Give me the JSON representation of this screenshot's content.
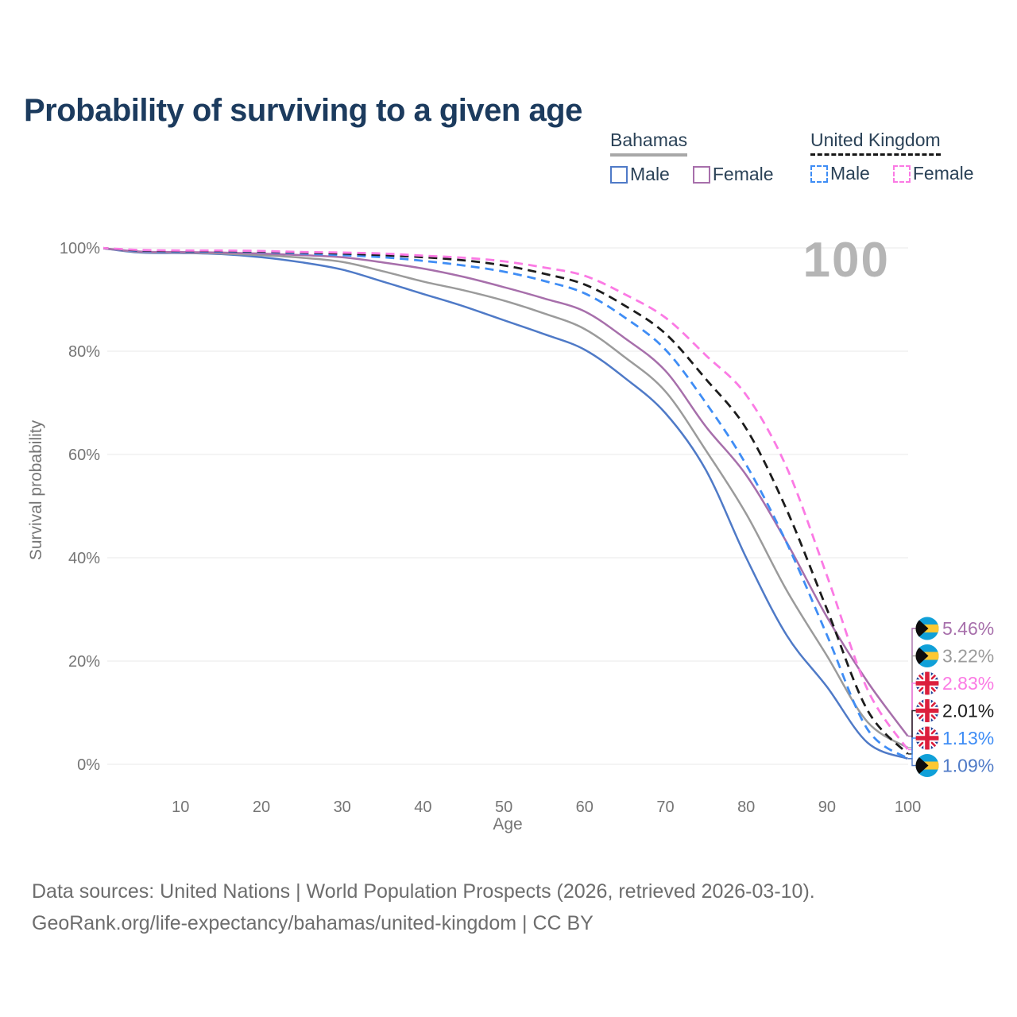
{
  "title": "Probability of surviving to a given age",
  "watermark_age": "100",
  "legend": {
    "groups": [
      {
        "label": "Bahamas",
        "underline_style": "solid",
        "underline_color": "#a8a8a8",
        "items": [
          {
            "label": "Male",
            "series": "bahamas_male"
          },
          {
            "label": "Female",
            "series": "bahamas_female"
          }
        ]
      },
      {
        "label": "United Kingdom",
        "underline_style": "dashed",
        "underline_color": "#161616",
        "items": [
          {
            "label": "Male",
            "series": "uk_male"
          },
          {
            "label": "Female",
            "series": "uk_female"
          }
        ]
      }
    ]
  },
  "axes": {
    "xlabel": "Age",
    "ylabel": "Survival probability",
    "x_ticks": [
      10,
      20,
      30,
      40,
      50,
      60,
      70,
      80,
      90,
      100
    ],
    "y_ticks": [
      {
        "value": 0,
        "label": "0%"
      },
      {
        "value": 20,
        "label": "20%"
      },
      {
        "value": 40,
        "label": "40%"
      },
      {
        "value": 60,
        "label": "60%"
      },
      {
        "value": 80,
        "label": "80%"
      },
      {
        "value": 100,
        "label": "100%"
      }
    ],
    "tick_color": "#757575",
    "grid_color": "#e9e9e9"
  },
  "chart_data": {
    "type": "line",
    "title": "Probability of surviving to a given age",
    "xlabel": "Age",
    "ylabel": "Survival probability",
    "xlim": [
      0,
      100
    ],
    "ylim": [
      0,
      100
    ],
    "grid": "horizontal-only",
    "legend_position": "top-right",
    "frame_label": "100",
    "x": [
      0,
      5,
      10,
      15,
      20,
      25,
      30,
      35,
      40,
      45,
      50,
      55,
      60,
      65,
      70,
      75,
      80,
      85,
      90,
      95,
      100
    ],
    "series": [
      {
        "id": "bahamas_male",
        "name": "Bahamas Male",
        "country": "Bahamas",
        "sex": "Male",
        "color": "#4f7ac7",
        "dash": false,
        "values": [
          100,
          99.1,
          99.0,
          98.8,
          98.2,
          97.2,
          95.8,
          93.5,
          91.1,
          88.7,
          86.0,
          83.3,
          80.3,
          74.8,
          68.0,
          57.0,
          40.0,
          25.0,
          15.0,
          4.2,
          1.09
        ],
        "end_label": "1.09%"
      },
      {
        "id": "bahamas_both",
        "name": "Bahamas Both sexes",
        "country": "Bahamas",
        "sex": "Both",
        "color": "#9b9b9b",
        "dash": false,
        "values": [
          100,
          99.2,
          99.1,
          98.9,
          98.6,
          98.1,
          97.3,
          95.5,
          93.5,
          91.8,
          89.8,
          87.3,
          84.3,
          78.8,
          72.2,
          60.8,
          48.5,
          33.7,
          21.0,
          8.2,
          3.22
        ],
        "end_label": "3.22%"
      },
      {
        "id": "bahamas_female",
        "name": "Bahamas Female",
        "country": "Bahamas",
        "sex": "Female",
        "color": "#a76fab",
        "dash": false,
        "values": [
          100,
          99.3,
          99.2,
          99.1,
          98.9,
          98.6,
          98.2,
          97.2,
          96.0,
          94.4,
          92.4,
          90.2,
          87.7,
          82.5,
          76.2,
          65.4,
          56.0,
          43.0,
          28.5,
          16.0,
          5.46
        ],
        "end_label": "5.46%"
      },
      {
        "id": "uk_male",
        "name": "United Kingdom Male",
        "country": "United Kingdom",
        "sex": "Male",
        "color": "#3f8df5",
        "dash": true,
        "values": [
          100,
          99.4,
          99.3,
          99.3,
          99.2,
          98.9,
          98.6,
          98.2,
          97.5,
          96.6,
          95.4,
          93.6,
          91.2,
          86.5,
          80.3,
          70.0,
          58.0,
          42.9,
          25.0,
          6.8,
          1.13
        ],
        "end_label": "1.13%"
      },
      {
        "id": "uk_both",
        "name": "United Kingdom Both sexes",
        "country": "United Kingdom",
        "sex": "Both",
        "color": "#1c1c1c",
        "dash": true,
        "values": [
          100,
          99.5,
          99.4,
          99.4,
          99.3,
          99.1,
          98.9,
          98.6,
          98.2,
          97.6,
          96.6,
          95.0,
          92.9,
          88.8,
          83.4,
          74.6,
          65.0,
          49.3,
          30.0,
          10.5,
          2.01
        ],
        "end_label": "2.01%"
      },
      {
        "id": "uk_female",
        "name": "United Kingdom Female",
        "country": "United Kingdom",
        "sex": "Female",
        "color": "#fb7ae4",
        "dash": true,
        "values": [
          100,
          99.6,
          99.5,
          99.5,
          99.4,
          99.2,
          99.1,
          98.9,
          98.5,
          98.1,
          97.4,
          96.2,
          94.6,
          91.0,
          86.5,
          79.2,
          71.5,
          57.5,
          36.5,
          14.5,
          2.83
        ],
        "end_label": "2.83%"
      }
    ],
    "end_label_order": [
      "bahamas_female",
      "bahamas_both",
      "uk_female",
      "uk_both",
      "uk_male",
      "bahamas_male"
    ],
    "flag_colors": {
      "bahamas": {
        "aqua": "#10a0d8",
        "gold": "#fdc832",
        "black": "#0d0d0d"
      },
      "uk": {
        "navy": "#1e3f94",
        "red": "#dc1f3c",
        "white": "#ffffff"
      }
    }
  },
  "footer": {
    "line1": "Data sources: United Nations | World Population Prospects (2026, retrieved 2026-03-10).",
    "line2": "GeoRank.org/life-expectancy/bahamas/united-kingdom | CC BY"
  }
}
